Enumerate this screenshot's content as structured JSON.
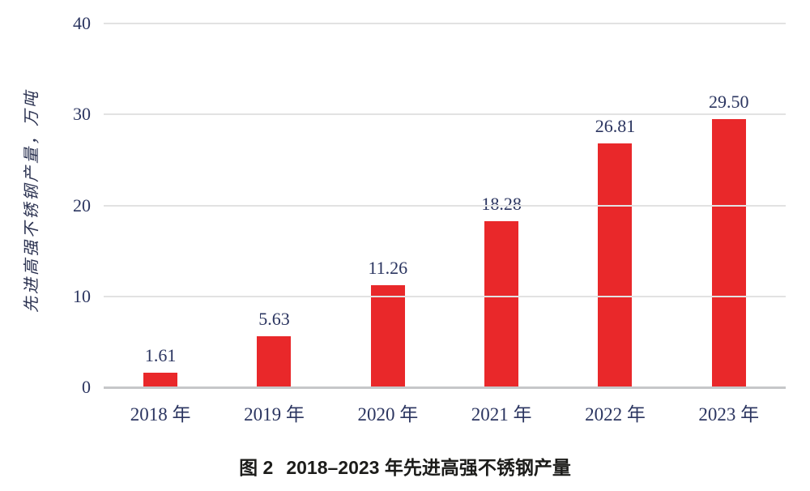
{
  "chart_data": {
    "type": "bar",
    "title": "图 2 2018–2023 年先进高强不锈钢产量",
    "categories": [
      "2018 年",
      "2019 年",
      "2020 年",
      "2021 年",
      "2022 年",
      "2023 年"
    ],
    "values": [
      1.61,
      5.63,
      11.26,
      18.28,
      26.81,
      29.5
    ],
    "value_labels": [
      "1.61",
      "5.63",
      "11.26",
      "18.28",
      "26.81",
      "29.50"
    ],
    "xlabel": "",
    "ylabel": "先进高强不锈钢产量，万吨",
    "ylim": [
      0,
      40
    ],
    "yticks": [
      0,
      10,
      20,
      30,
      40
    ],
    "grid": "horizontal",
    "legend": "none",
    "bar_color": "#e9282a",
    "text_color": "#2b3560",
    "gridline_color": "#e2e2e2",
    "baseline_color": "#c6c7c9"
  },
  "caption": {
    "number": "图 2",
    "text": "2018–2023 年先进高强不锈钢产量"
  }
}
